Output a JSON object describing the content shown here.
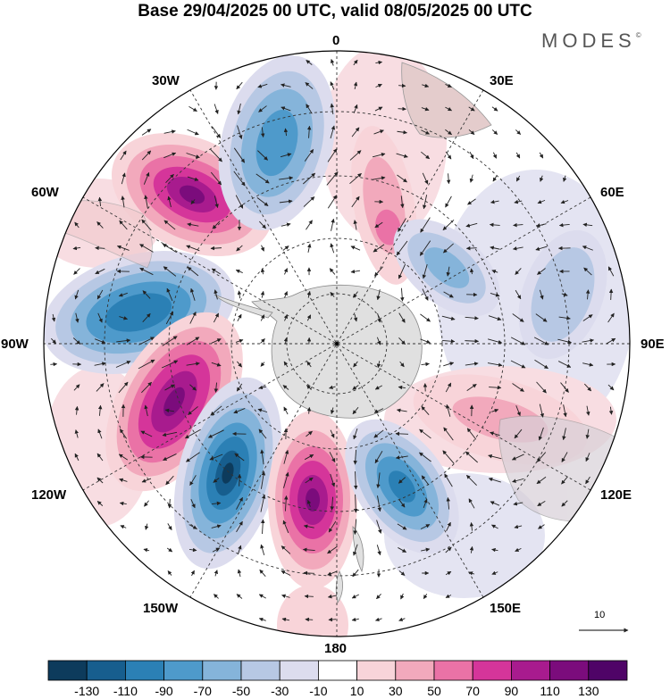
{
  "title": "Base 29/04/2025 00 UTC, valid 08/05/2025 00 UTC",
  "brand": {
    "name": "MODES",
    "mark": "©"
  },
  "map": {
    "projection": "south-polar-stereographic",
    "longitude_labels": {
      "top": "0",
      "top_right": "30E",
      "right_upper": "60E",
      "right": "90E",
      "right_lower": "120E",
      "bottom_right": "150E",
      "bottom": "180",
      "bottom_left": "150W",
      "left_lower": "120W",
      "left": "90W",
      "left_upper": "60W",
      "top_left": "30W"
    },
    "reference_vector": "10"
  },
  "colorbar": {
    "ticks": [
      "-130",
      "-110",
      "-90",
      "-70",
      "-50",
      "-30",
      "-10",
      "10",
      "30",
      "50",
      "70",
      "90",
      "110",
      "130"
    ],
    "colors": [
      "#0d3b5c",
      "#175e8e",
      "#2b80b5",
      "#4e9acb",
      "#85b4da",
      "#b7c8e4",
      "#dcdcee",
      "#ffffff",
      "#f8d4d9",
      "#f2a9bc",
      "#ea72a6",
      "#d5359a",
      "#a81b8e",
      "#7b0c7c",
      "#4f0467"
    ]
  }
}
